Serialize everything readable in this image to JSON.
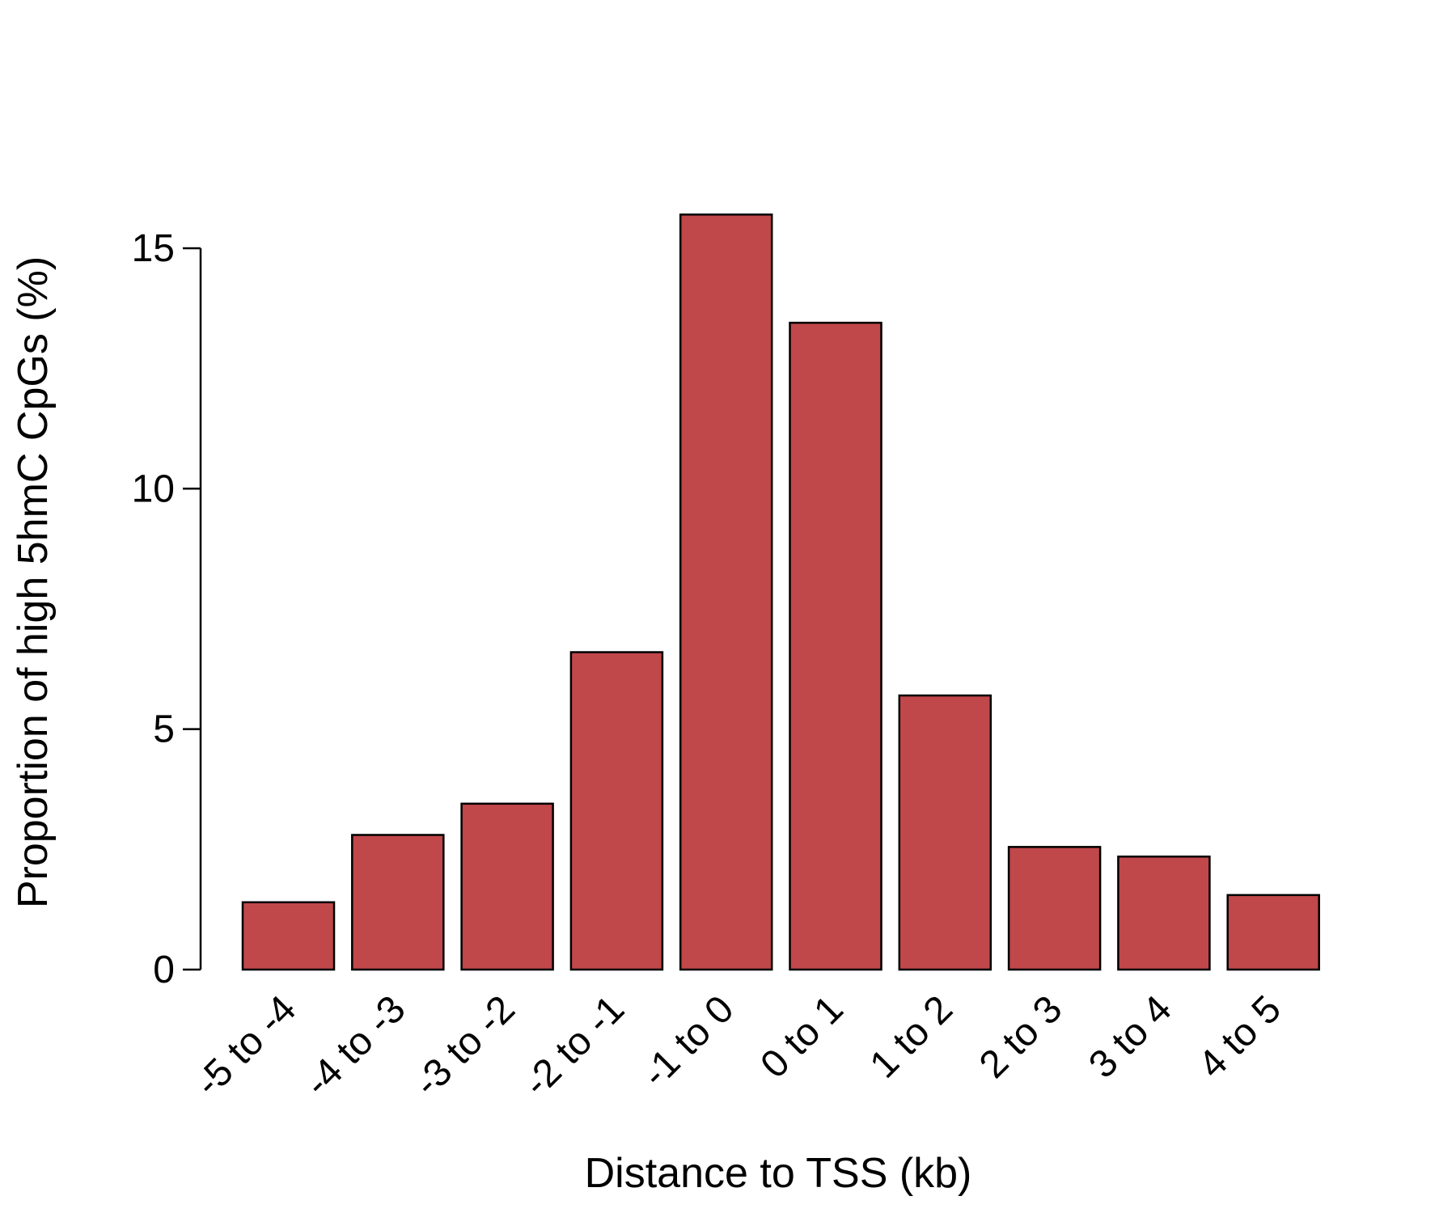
{
  "chart_data": {
    "type": "bar",
    "categories": [
      "-5 to -4",
      "-4 to -3",
      "-3 to -2",
      "-2 to -1",
      "-1 to 0",
      "0 to 1",
      "1 to 2",
      "2 to 3",
      "3 to 4",
      "4 to 5"
    ],
    "values": [
      1.4,
      2.8,
      3.45,
      6.6,
      15.7,
      13.45,
      5.7,
      2.55,
      2.35,
      1.55
    ],
    "xlabel": "Distance to TSS (kb)",
    "ylabel": "Proportion of high 5hmC CpGs (%)",
    "yticks": [
      0,
      5,
      10,
      15
    ],
    "ylim": [
      0,
      17
    ],
    "bar_color": "#c0474a",
    "grid": false,
    "legend": "none"
  }
}
